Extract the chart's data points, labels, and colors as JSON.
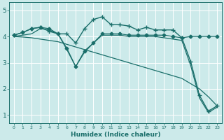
{
  "xlabel": "Humidex (Indice chaleur)",
  "bg_color": "#cceaea",
  "grid_color": "#ffffff",
  "line_color": "#1a6e6a",
  "xlim": [
    -0.5,
    23.5
  ],
  "ylim": [
    0.7,
    5.3
  ],
  "yticks": [
    1,
    2,
    3,
    4,
    5
  ],
  "xticks": [
    0,
    1,
    2,
    3,
    4,
    5,
    6,
    7,
    8,
    9,
    10,
    11,
    12,
    13,
    14,
    15,
    16,
    17,
    18,
    19,
    20,
    21,
    22,
    23
  ],
  "series": [
    {
      "x": [
        0,
        1,
        2,
        3,
        4,
        5,
        6,
        7,
        8,
        9,
        10,
        11,
        12,
        13,
        14,
        15,
        16,
        17,
        18,
        19,
        20,
        21,
        22,
        23
      ],
      "y": [
        4.05,
        4.15,
        4.3,
        4.35,
        4.2,
        4.1,
        4.1,
        3.75,
        4.3,
        4.65,
        4.75,
        4.45,
        4.45,
        4.4,
        4.25,
        4.35,
        4.25,
        4.25,
        4.25,
        3.95,
        3.05,
        1.75,
        1.15,
        1.35
      ],
      "marker": "+",
      "markersize": 4,
      "lw": 1.0
    },
    {
      "x": [
        0,
        1,
        2,
        3,
        4,
        5,
        6,
        7,
        8,
        9,
        10,
        11,
        12,
        13,
        14,
        15,
        16,
        17,
        18,
        19,
        20,
        21,
        22,
        23
      ],
      "y": [
        4.05,
        4.15,
        4.3,
        4.35,
        4.3,
        4.1,
        3.55,
        2.85,
        3.45,
        3.75,
        4.1,
        4.1,
        4.1,
        4.05,
        4.05,
        4.05,
        4.05,
        4.05,
        4.0,
        3.95,
        4.0,
        4.0,
        4.0,
        4.0
      ],
      "marker": "D",
      "markersize": 2.5,
      "lw": 0.9
    },
    {
      "x": [
        0,
        1,
        2,
        3,
        4,
        5,
        6,
        7,
        8,
        9,
        10,
        11,
        12,
        13,
        14,
        15,
        16,
        17,
        18,
        19,
        20,
        21,
        22,
        23
      ],
      "y": [
        4.0,
        3.98,
        3.95,
        3.9,
        3.85,
        3.8,
        3.7,
        3.6,
        3.5,
        3.4,
        3.3,
        3.2,
        3.1,
        3.0,
        2.9,
        2.8,
        2.7,
        2.6,
        2.5,
        2.4,
        2.2,
        2.0,
        1.7,
        1.35
      ],
      "marker": null,
      "markersize": 0,
      "lw": 0.9
    },
    {
      "x": [
        0,
        1,
        2,
        3,
        4,
        5,
        6,
        7,
        8,
        9,
        10,
        11,
        12,
        13,
        14,
        15,
        16,
        17,
        18,
        19,
        20,
        21,
        22,
        23
      ],
      "y": [
        4.0,
        4.05,
        4.1,
        4.3,
        4.25,
        4.1,
        3.5,
        2.85,
        3.4,
        3.75,
        4.05,
        4.05,
        4.05,
        4.0,
        4.0,
        4.0,
        4.0,
        3.95,
        3.9,
        3.85,
        2.9,
        1.65,
        1.1,
        1.3
      ],
      "marker": null,
      "markersize": 0,
      "lw": 0.9
    }
  ]
}
